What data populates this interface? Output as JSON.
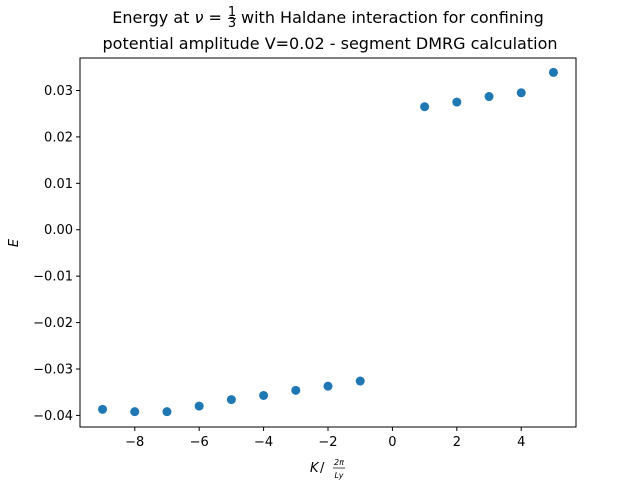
{
  "chart_data": {
    "type": "scatter",
    "title_line1_prefix": "Energy at ",
    "title_nu": "ν",
    "title_eq": " = ",
    "title_frac_num": "1",
    "title_frac_den": "3",
    "title_line1_suffix": " with Haldane interaction for confining",
    "title_line2": "potential amplitude V=0.02 - segment DMRG calculation",
    "xlabel_main": "K",
    "xlabel_sep": " / ",
    "xlabel_frac_num": "2π",
    "xlabel_frac_den": "Ly",
    "ylabel": "E",
    "xlim": [
      -9.7,
      5.7
    ],
    "ylim": [
      -0.0425,
      0.037
    ],
    "xticks": [
      -8,
      -6,
      -4,
      -2,
      0,
      2,
      4
    ],
    "xtick_labels": [
      "−8",
      "−6",
      "−4",
      "−2",
      "0",
      "2",
      "4"
    ],
    "yticks": [
      -0.04,
      -0.03,
      -0.02,
      -0.01,
      0.0,
      0.01,
      0.02,
      0.03
    ],
    "ytick_labels": [
      "−0.04",
      "−0.03",
      "−0.02",
      "−0.01",
      "0.00",
      "0.01",
      "0.02",
      "0.03"
    ],
    "grid": false,
    "marker_color": "#1f77b4",
    "x": [
      -9,
      -8,
      -7,
      -6,
      -5,
      -4,
      -3,
      -2,
      -1,
      1,
      2,
      3,
      4,
      5
    ],
    "y": [
      -0.0387,
      -0.0392,
      -0.0392,
      -0.038,
      -0.0366,
      -0.0357,
      -0.0346,
      -0.0337,
      -0.0326,
      0.0265,
      0.0275,
      0.0287,
      0.0295,
      0.0339
    ]
  }
}
